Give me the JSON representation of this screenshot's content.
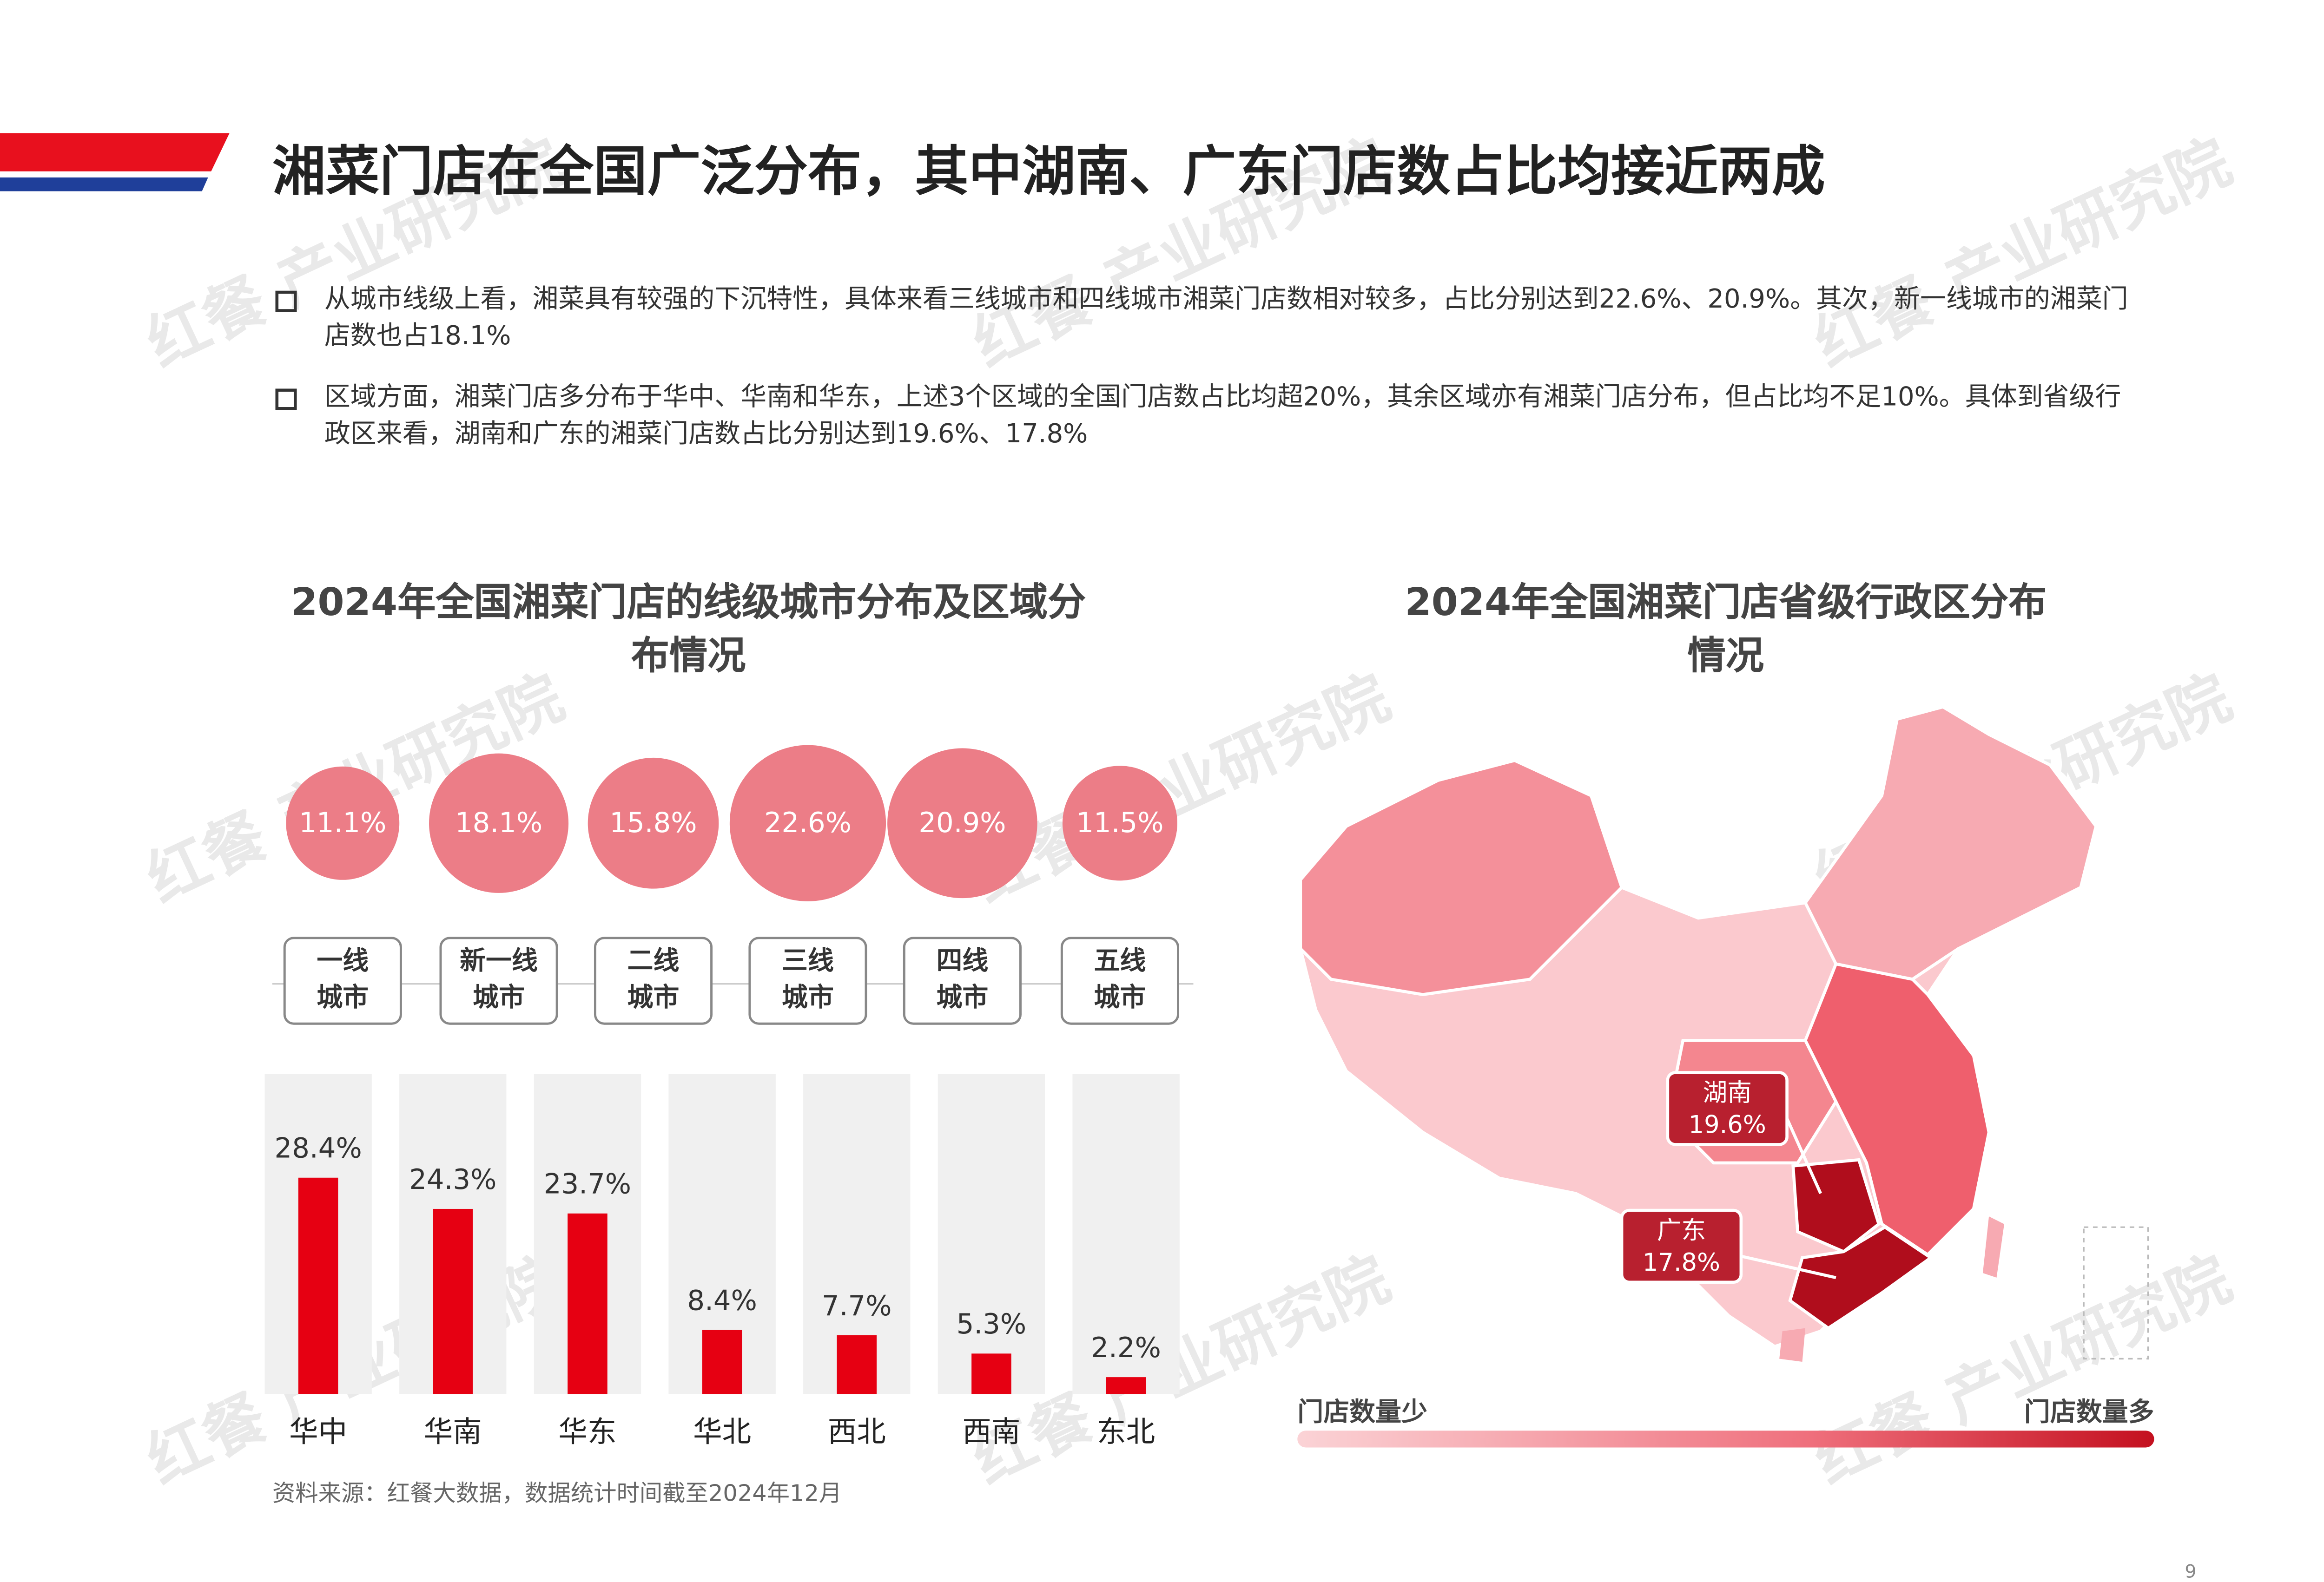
{
  "header": {
    "title": "湘菜门店在全国广泛分布，其中湖南、广东门店数占比均接近两成"
  },
  "bullets": [
    "从城市线级上看，湘菜具有较强的下沉特性，具体来看三线城市和四线城市湘菜门店数相对较多，占比分别达到22.6%、20.9%。其次，新一线城市的湘菜门店数也占18.1%",
    "区域方面，湘菜门店多分布于华中、华南和华东，上述3个区域的全国门店数占比均超20%，其余区域亦有湘菜门店分布，但占比均不足10%。具体到省级行政区来看，湖南和广东的湘菜门店数占比分别达到19.6%、17.8%"
  ],
  "chart_data": [
    {
      "type": "bubble",
      "title": "2024年全国湘菜门店的线级城市分布及区域分布情况",
      "categories": [
        "一线城市",
        "新一线城市",
        "二线城市",
        "三线城市",
        "四线城市",
        "五线城市"
      ],
      "values": [
        11.1,
        18.1,
        15.8,
        22.6,
        20.9,
        11.5
      ],
      "value_labels": [
        "11.1%",
        "18.1%",
        "15.8%",
        "22.6%",
        "20.9%",
        "11.5%"
      ],
      "color": "#ec7d87"
    },
    {
      "type": "bar",
      "categories": [
        "华中",
        "华南",
        "华东",
        "华北",
        "西北",
        "西南",
        "东北"
      ],
      "values": [
        28.4,
        24.3,
        23.7,
        8.4,
        7.7,
        5.3,
        2.2
      ],
      "value_labels": [
        "28.4%",
        "24.3%",
        "23.7%",
        "8.4%",
        "7.7%",
        "5.3%",
        "2.2%"
      ],
      "color": "#e60012",
      "ylim": [
        0,
        42
      ]
    }
  ],
  "map": {
    "title": "2024年全国湘菜门店省级行政区分布情况",
    "callouts": [
      {
        "name": "湖南",
        "value_label": "19.6%"
      },
      {
        "name": "广东",
        "value_label": "17.8%"
      }
    ],
    "legend": {
      "low": "门店数量少",
      "high": "门店数量多"
    }
  },
  "watermark": "红餐 产业研究院",
  "source": "资料来源：红餐大数据，数据统计时间截至2024年12月",
  "page_number": "9"
}
